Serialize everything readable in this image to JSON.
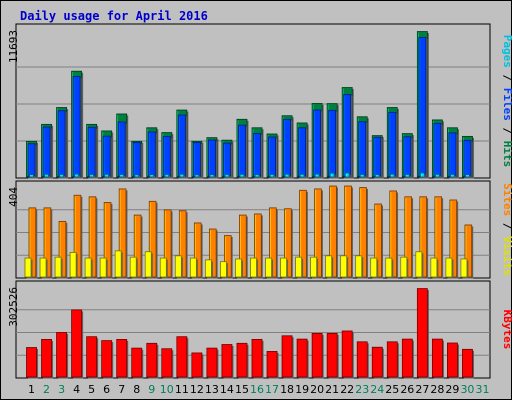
{
  "title": "Daily usage for April 2016",
  "colors": {
    "title": "#0000CC",
    "background": "#C0C0C0",
    "grid": "#808080",
    "hits": "#008040",
    "files": "#0040FF",
    "pages": "#00E0FF",
    "visits": "#FFFF00",
    "sites": "#FF8000",
    "kbytes": "#FF0000",
    "weekday": "#000000",
    "weekend": "#00805C"
  },
  "chart_data": [
    {
      "type": "bar",
      "panel": "hits-files-pages",
      "ytick": "11693",
      "ymax": 11693,
      "legend": [
        {
          "text": "Pages",
          "color": "#00C0E0"
        },
        {
          "text": " / ",
          "color": "#000000"
        },
        {
          "text": "Files",
          "color": "#0040FF"
        },
        {
          "text": " / ",
          "color": "#000000"
        },
        {
          "text": "Hits",
          "color": "#008040"
        }
      ],
      "categories": [
        "1",
        "2",
        "3",
        "4",
        "5",
        "6",
        "7",
        "8",
        "9",
        "10",
        "11",
        "12",
        "13",
        "14",
        "15",
        "16",
        "17",
        "18",
        "19",
        "20",
        "21",
        "22",
        "23",
        "24",
        "25",
        "26",
        "27",
        "28",
        "29",
        "30",
        "31"
      ],
      "series": [
        {
          "name": "Hits",
          "values": [
            2820,
            4160,
            5490,
            8360,
            4160,
            3640,
            4980,
            2820,
            3890,
            3510,
            5290,
            2820,
            3110,
            2910,
            4560,
            3890,
            3400,
            4840,
            4270,
            5810,
            5800,
            7070,
            4760,
            3270,
            5490,
            3430,
            11493,
            4510,
            3890,
            3210,
            0
          ]
        },
        {
          "name": "Files",
          "values": [
            2630,
            3950,
            5240,
            7940,
            3930,
            3230,
            4350,
            2720,
            3560,
            3200,
            4900,
            2720,
            2920,
            2680,
            4100,
            3440,
            3160,
            4560,
            3890,
            5300,
            5270,
            6520,
            4370,
            3140,
            5110,
            3180,
            11018,
            4240,
            3490,
            2890,
            0
          ]
        },
        {
          "name": "Pages",
          "values": [
            190,
            210,
            200,
            230,
            200,
            210,
            200,
            180,
            190,
            200,
            220,
            180,
            190,
            200,
            210,
            190,
            200,
            220,
            210,
            230,
            300,
            320,
            200,
            190,
            220,
            200,
            320,
            210,
            200,
            190,
            0
          ]
        }
      ]
    },
    {
      "type": "bar",
      "panel": "visits-sites",
      "ytick": "404",
      "ymax": 404,
      "legend": [
        {
          "text": "Sites",
          "color": "#FF8000"
        },
        {
          "text": " / ",
          "color": "#000000"
        },
        {
          "text": "Visits",
          "color": "#E0E000"
        }
      ],
      "categories": [
        "1",
        "2",
        "3",
        "4",
        "5",
        "6",
        "7",
        "8",
        "9",
        "10",
        "11",
        "12",
        "13",
        "14",
        "15",
        "16",
        "17",
        "18",
        "19",
        "20",
        "21",
        "22",
        "23",
        "24",
        "25",
        "26",
        "27",
        "28",
        "29",
        "30",
        "31"
      ],
      "series": [
        {
          "name": "Sites",
          "values": [
            307,
            307,
            247,
            363,
            356,
            331,
            391,
            275,
            336,
            298,
            294,
            240,
            213,
            184,
            275,
            280,
            307,
            303,
            385,
            391,
            404,
            404,
            397,
            324,
            382,
            356,
            356,
            356,
            342,
            231,
            0
          ]
        },
        {
          "name": "Visits",
          "values": [
            84,
            84,
            88,
            109,
            84,
            84,
            116,
            88,
            112,
            84,
            94,
            84,
            76,
            68,
            80,
            84,
            84,
            84,
            88,
            88,
            94,
            94,
            94,
            84,
            84,
            88,
            112,
            84,
            84,
            80,
            0
          ]
        }
      ]
    },
    {
      "type": "bar",
      "panel": "kbytes",
      "ytick": "302526",
      "ymax": 302526,
      "legend": [
        {
          "text": "KBytes",
          "color": "#FF0000"
        }
      ],
      "categories": [
        "1",
        "2",
        "3",
        "4",
        "5",
        "6",
        "7",
        "8",
        "9",
        "10",
        "11",
        "12",
        "13",
        "14",
        "15",
        "16",
        "17",
        "18",
        "19",
        "20",
        "21",
        "22",
        "23",
        "24",
        "25",
        "26",
        "27",
        "28",
        "29",
        "30",
        "31"
      ],
      "series": [
        {
          "name": "KBytes",
          "values": [
            98000,
            125000,
            148000,
            223000,
            134000,
            121000,
            125000,
            96000,
            112000,
            94000,
            134000,
            80000,
            96000,
            108000,
            112000,
            125000,
            85000,
            137000,
            126000,
            145000,
            145000,
            153000,
            117000,
            99000,
            117000,
            126000,
            294000,
            126000,
            113000,
            92000,
            0
          ]
        }
      ]
    }
  ]
}
